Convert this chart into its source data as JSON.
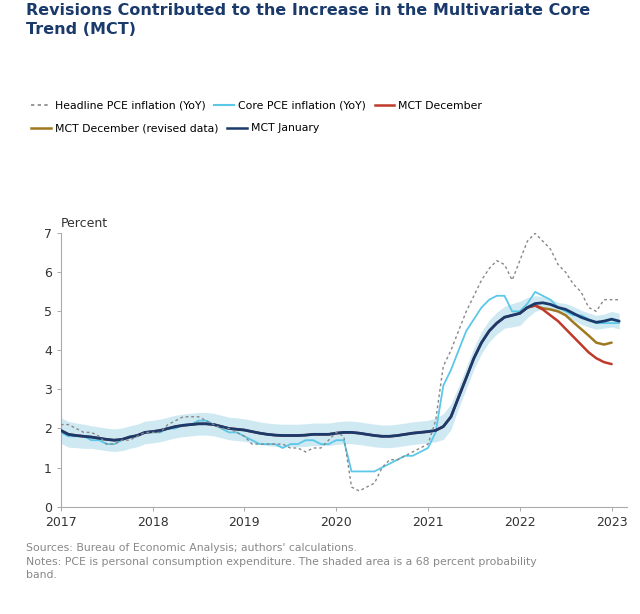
{
  "title": "Revisions Contributed to the Increase in the Multivariate Core\nTrend (MCT)",
  "ylabel": "Percent",
  "source_text": "Sources: Bureau of Economic Analysis; authors' calculations.\nNotes: PCE is personal consumption expenditure. The shaded area is a 68 percent probability\nband.",
  "xlim": [
    2017.0,
    2023.17
  ],
  "ylim": [
    0,
    7
  ],
  "yticks": [
    0,
    1,
    2,
    3,
    4,
    5,
    6,
    7
  ],
  "xtick_labels": [
    "2017",
    "2018",
    "2019",
    "2020",
    "2021",
    "2022",
    "2023"
  ],
  "xtick_positions": [
    2017,
    2018,
    2019,
    2020,
    2021,
    2022,
    2023
  ],
  "background_color": "#ffffff",
  "title_color": "#1a3a6b",
  "colors": {
    "headline_pce": "#888888",
    "core_pce": "#5bc8e8",
    "mct_december": "#c0392b",
    "mct_december_revised": "#a07820",
    "mct_january": "#1a3a6b",
    "band_fill": "#a8d8ea"
  },
  "dates": [
    2017.0,
    2017.083,
    2017.167,
    2017.25,
    2017.333,
    2017.417,
    2017.5,
    2017.583,
    2017.667,
    2017.75,
    2017.833,
    2017.917,
    2018.0,
    2018.083,
    2018.167,
    2018.25,
    2018.333,
    2018.417,
    2018.5,
    2018.583,
    2018.667,
    2018.75,
    2018.833,
    2018.917,
    2019.0,
    2019.083,
    2019.167,
    2019.25,
    2019.333,
    2019.417,
    2019.5,
    2019.583,
    2019.667,
    2019.75,
    2019.833,
    2019.917,
    2020.0,
    2020.083,
    2020.167,
    2020.25,
    2020.333,
    2020.417,
    2020.5,
    2020.583,
    2020.667,
    2020.75,
    2020.833,
    2020.917,
    2021.0,
    2021.083,
    2021.167,
    2021.25,
    2021.333,
    2021.417,
    2021.5,
    2021.583,
    2021.667,
    2021.75,
    2021.833,
    2021.917,
    2022.0,
    2022.083,
    2022.167,
    2022.25,
    2022.333,
    2022.417,
    2022.5,
    2022.583,
    2022.667,
    2022.75,
    2022.833,
    2022.917,
    2023.0,
    2023.083
  ],
  "headline_pce": [
    2.1,
    2.1,
    2.0,
    1.9,
    1.9,
    1.8,
    1.6,
    1.6,
    1.7,
    1.7,
    1.8,
    1.9,
    1.9,
    1.9,
    2.1,
    2.2,
    2.3,
    2.3,
    2.3,
    2.2,
    2.1,
    2.0,
    2.0,
    1.9,
    1.8,
    1.6,
    1.6,
    1.6,
    1.6,
    1.6,
    1.5,
    1.5,
    1.4,
    1.5,
    1.5,
    1.7,
    1.9,
    1.8,
    0.5,
    0.4,
    0.5,
    0.6,
    1.0,
    1.2,
    1.2,
    1.3,
    1.4,
    1.5,
    1.6,
    2.2,
    3.6,
    4.0,
    4.5,
    5.0,
    5.4,
    5.8,
    6.1,
    6.3,
    6.2,
    5.8,
    6.3,
    6.8,
    7.0,
    6.8,
    6.6,
    6.2,
    6.0,
    5.7,
    5.5,
    5.1,
    5.0,
    5.3,
    5.3,
    5.3
  ],
  "core_pce": [
    1.9,
    1.8,
    1.8,
    1.8,
    1.7,
    1.7,
    1.6,
    1.6,
    1.7,
    1.8,
    1.8,
    1.9,
    1.9,
    1.9,
    2.0,
    2.0,
    2.1,
    2.1,
    2.2,
    2.2,
    2.1,
    2.0,
    1.9,
    1.9,
    1.8,
    1.7,
    1.6,
    1.6,
    1.6,
    1.5,
    1.6,
    1.6,
    1.7,
    1.7,
    1.6,
    1.6,
    1.7,
    1.7,
    0.9,
    0.9,
    0.9,
    0.9,
    1.0,
    1.1,
    1.2,
    1.3,
    1.3,
    1.4,
    1.5,
    1.9,
    3.1,
    3.5,
    4.0,
    4.5,
    4.8,
    5.1,
    5.3,
    5.4,
    5.4,
    5.0,
    5.0,
    5.2,
    5.5,
    5.4,
    5.3,
    5.1,
    5.0,
    4.9,
    4.9,
    4.8,
    4.7,
    4.7,
    4.7,
    4.7
  ],
  "mct_january": [
    1.95,
    1.85,
    1.82,
    1.8,
    1.78,
    1.75,
    1.72,
    1.7,
    1.72,
    1.78,
    1.82,
    1.9,
    1.92,
    1.95,
    2.0,
    2.05,
    2.08,
    2.1,
    2.12,
    2.12,
    2.1,
    2.05,
    2.0,
    1.98,
    1.96,
    1.92,
    1.88,
    1.85,
    1.83,
    1.82,
    1.82,
    1.82,
    1.83,
    1.85,
    1.85,
    1.85,
    1.88,
    1.9,
    1.9,
    1.88,
    1.85,
    1.82,
    1.8,
    1.8,
    1.82,
    1.85,
    1.88,
    1.9,
    1.92,
    1.95,
    2.05,
    2.3,
    2.8,
    3.3,
    3.8,
    4.2,
    4.5,
    4.7,
    4.85,
    4.9,
    4.95,
    5.1,
    5.2,
    5.22,
    5.18,
    5.1,
    5.05,
    4.95,
    4.85,
    4.78,
    4.72,
    4.75,
    4.8,
    4.75
  ],
  "mct_december": [
    1.95,
    1.85,
    1.82,
    1.8,
    1.78,
    1.75,
    1.72,
    1.7,
    1.72,
    1.78,
    1.82,
    1.9,
    1.92,
    1.95,
    2.0,
    2.05,
    2.08,
    2.1,
    2.12,
    2.12,
    2.1,
    2.05,
    2.0,
    1.98,
    1.96,
    1.92,
    1.88,
    1.85,
    1.83,
    1.82,
    1.82,
    1.82,
    1.83,
    1.85,
    1.85,
    1.85,
    1.88,
    1.9,
    1.9,
    1.88,
    1.85,
    1.82,
    1.8,
    1.8,
    1.82,
    1.85,
    1.88,
    1.9,
    1.92,
    1.95,
    2.05,
    2.3,
    2.8,
    3.3,
    3.8,
    4.2,
    4.5,
    4.7,
    4.85,
    4.9,
    4.95,
    5.1,
    5.15,
    5.05,
    4.9,
    4.75,
    4.55,
    4.35,
    4.15,
    3.95,
    3.8,
    3.7,
    3.65,
    null
  ],
  "mct_december_revised": [
    null,
    null,
    null,
    null,
    null,
    null,
    null,
    null,
    null,
    null,
    null,
    null,
    null,
    null,
    null,
    null,
    null,
    null,
    null,
    null,
    null,
    null,
    null,
    null,
    null,
    null,
    null,
    null,
    null,
    null,
    null,
    null,
    null,
    null,
    null,
    null,
    null,
    null,
    null,
    null,
    null,
    null,
    null,
    null,
    null,
    null,
    null,
    null,
    null,
    null,
    null,
    null,
    null,
    null,
    null,
    null,
    null,
    null,
    null,
    null,
    4.95,
    5.1,
    5.15,
    5.08,
    5.05,
    5.0,
    4.9,
    4.72,
    4.55,
    4.38,
    4.2,
    4.15,
    4.2,
    null
  ],
  "band_upper": [
    2.28,
    2.18,
    2.14,
    2.11,
    2.07,
    2.04,
    2.01,
    1.99,
    2.01,
    2.07,
    2.11,
    2.19,
    2.21,
    2.24,
    2.29,
    2.34,
    2.37,
    2.39,
    2.41,
    2.41,
    2.39,
    2.34,
    2.29,
    2.27,
    2.25,
    2.21,
    2.17,
    2.14,
    2.12,
    2.11,
    2.11,
    2.11,
    2.12,
    2.14,
    2.14,
    2.14,
    2.17,
    2.19,
    2.19,
    2.17,
    2.14,
    2.11,
    2.09,
    2.09,
    2.11,
    2.14,
    2.17,
    2.19,
    2.21,
    2.26,
    2.38,
    2.63,
    3.08,
    3.58,
    4.08,
    4.48,
    4.78,
    4.98,
    5.13,
    5.2,
    5.26,
    5.36,
    5.4,
    5.38,
    5.33,
    5.23,
    5.2,
    5.13,
    5.03,
    4.96,
    4.9,
    4.93,
    5.0,
    4.95
  ],
  "band_lower": [
    1.62,
    1.52,
    1.51,
    1.49,
    1.49,
    1.46,
    1.43,
    1.41,
    1.43,
    1.49,
    1.53,
    1.61,
    1.63,
    1.66,
    1.71,
    1.76,
    1.79,
    1.81,
    1.83,
    1.83,
    1.81,
    1.76,
    1.71,
    1.69,
    1.67,
    1.63,
    1.59,
    1.56,
    1.54,
    1.53,
    1.53,
    1.53,
    1.54,
    1.56,
    1.56,
    1.56,
    1.59,
    1.61,
    1.61,
    1.59,
    1.56,
    1.53,
    1.51,
    1.51,
    1.53,
    1.56,
    1.59,
    1.61,
    1.63,
    1.66,
    1.72,
    1.97,
    2.52,
    3.02,
    3.52,
    3.92,
    4.22,
    4.42,
    4.57,
    4.6,
    4.64,
    4.84,
    5.0,
    5.06,
    5.03,
    4.97,
    4.9,
    4.77,
    4.67,
    4.6,
    4.54,
    4.57,
    4.6,
    4.55
  ],
  "legend": [
    {
      "label": "Headline PCE inflation (YoY)",
      "color": "#888888",
      "style": "dotted",
      "lw": 1.2
    },
    {
      "label": "Core PCE inflation (YoY)",
      "color": "#5bc8e8",
      "style": "solid",
      "lw": 1.5
    },
    {
      "label": "MCT December",
      "color": "#c0392b",
      "style": "solid",
      "lw": 1.8
    },
    {
      "label": "MCT December (revised data)",
      "color": "#a07820",
      "style": "solid",
      "lw": 1.8
    },
    {
      "label": "MCT January",
      "color": "#1a3a6b",
      "style": "solid",
      "lw": 1.8
    }
  ]
}
